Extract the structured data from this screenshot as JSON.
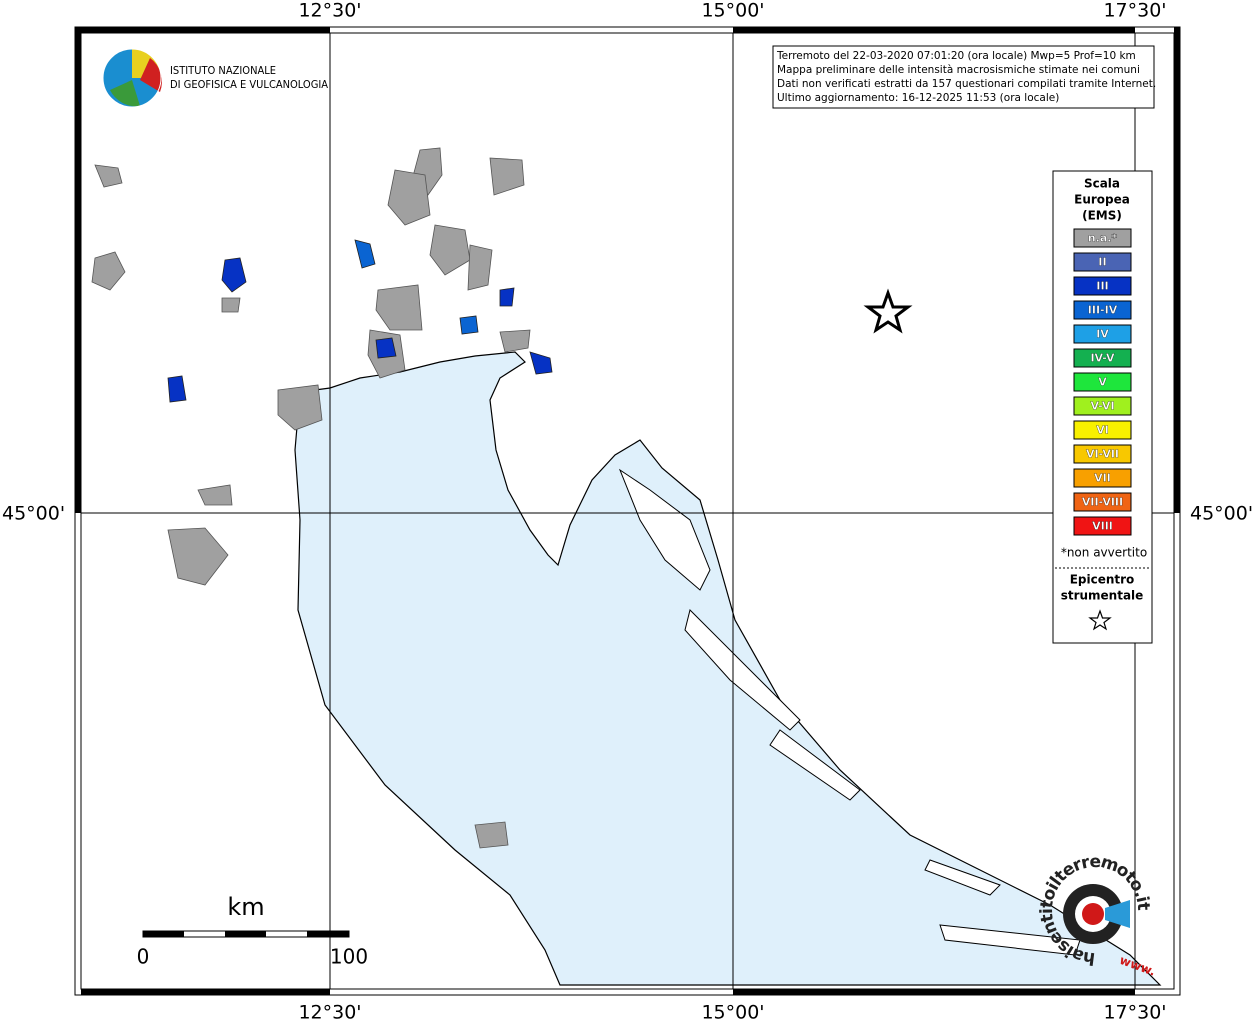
{
  "grid": {
    "lon_labels": [
      "12°30'",
      "15°00'",
      "17°30'"
    ],
    "lat_labels": [
      "45°00'"
    ]
  },
  "logo": {
    "lines": [
      "ISTITUTO NAZIONALE",
      "DI GEOFISICA E VULCANOLOGIA"
    ]
  },
  "info": {
    "lines": [
      "Terremoto del 22-03-2020 07:01:20 (ora locale) Mwp=5 Prof=10 km",
      "Mappa preliminare delle intensità macrosismiche stimate nei comuni",
      "Dati non verificati estratti da 157 questionari compilati tramite Internet.",
      "Ultimo aggiornamento: 16-12-2025 11:53 (ora locale)"
    ]
  },
  "legend": {
    "title": [
      "Scala",
      "Europea",
      "(EMS)"
    ],
    "items": [
      {
        "label": "n.a.*",
        "color": "#a0a0a0"
      },
      {
        "label": "II",
        "color": "#4a64b4"
      },
      {
        "label": "III",
        "color": "#0632c4"
      },
      {
        "label": "III-IV",
        "color": "#0a64d2"
      },
      {
        "label": "IV",
        "color": "#1ea0e6"
      },
      {
        "label": "IV-V",
        "color": "#14b050"
      },
      {
        "label": "V",
        "color": "#1ee63c"
      },
      {
        "label": "V-VI",
        "color": "#a0f01e"
      },
      {
        "label": "VI",
        "color": "#f8f000"
      },
      {
        "label": "VI-VII",
        "color": "#f8c800"
      },
      {
        "label": "VII",
        "color": "#f8a000"
      },
      {
        "label": "VII-VIII",
        "color": "#f06414"
      },
      {
        "label": "VIII",
        "color": "#f01414"
      }
    ],
    "note": "*non avvertito",
    "epicenter_title": [
      "Epicentro",
      "strumentale"
    ]
  },
  "scale_bar": {
    "unit": "km",
    "labels": [
      "0",
      "100"
    ]
  },
  "watermark": {
    "circle_text": "haisentitoilterremoto.it",
    "www": "www."
  }
}
